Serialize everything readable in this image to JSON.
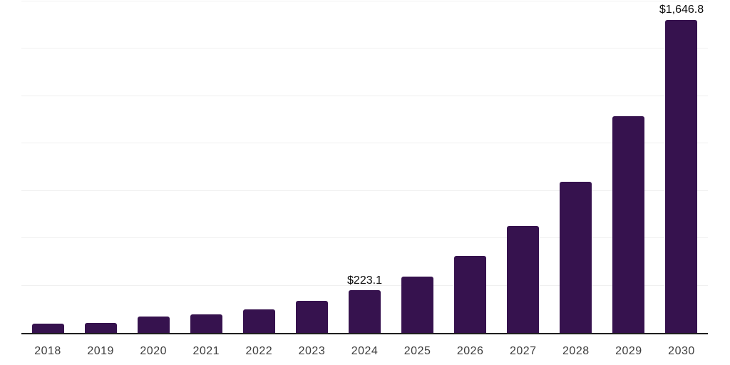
{
  "chart_data": {
    "type": "bar",
    "title": "",
    "xlabel": "",
    "ylabel": "",
    "categories": [
      "2018",
      "2019",
      "2020",
      "2021",
      "2022",
      "2023",
      "2024",
      "2025",
      "2026",
      "2027",
      "2028",
      "2029",
      "2030"
    ],
    "values": [
      48,
      52,
      87,
      97,
      122,
      167,
      223.1,
      297,
      404,
      564,
      796,
      1138,
      1646.8
    ],
    "data_labels": [
      "",
      "",
      "",
      "",
      "",
      "",
      "$223.1",
      "",
      "",
      "",
      "",
      "",
      "$1,646.8"
    ],
    "ylim": [
      0,
      1750
    ],
    "gridline_step": 250,
    "grid": "horizontal-only",
    "legend": "none",
    "y_tick_labels_visible": false,
    "bar_color": "#36124E",
    "axis_line_color": "#1f1f1f",
    "gridline_color": "#f0f0f0",
    "data_label_color": "#0a0a0a",
    "tick_label_color": "#3d3d3d",
    "background_color": "#ffffff"
  }
}
